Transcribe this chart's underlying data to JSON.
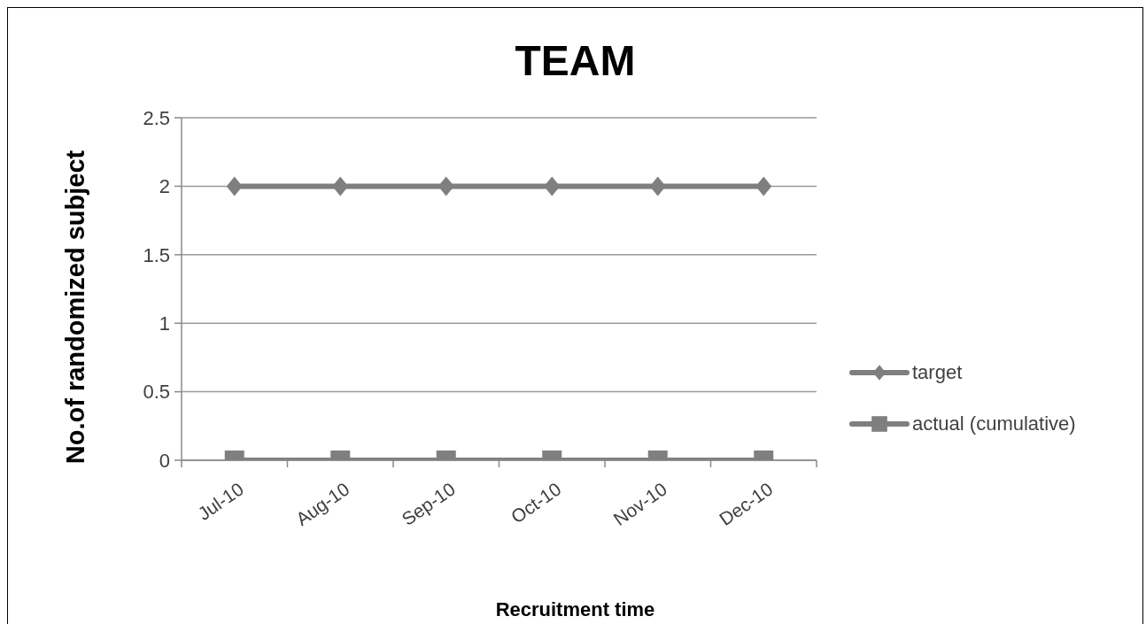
{
  "chart_data": {
    "type": "line",
    "title": "TEAM",
    "xlabel": "Recruitment time",
    "ylabel": "No.of randomized subject",
    "categories": [
      "Jul-10",
      "Aug-10",
      "Sep-10",
      "Oct-10",
      "Nov-10",
      "Dec-10"
    ],
    "series": [
      {
        "name": "target",
        "color": "#7f7f7f",
        "marker": "diamond",
        "values": [
          2,
          2,
          2,
          2,
          2,
          2
        ]
      },
      {
        "name": "actual (cumulative)",
        "color": "#7f7f7f",
        "marker": "square",
        "values": [
          0,
          0,
          0,
          0,
          0,
          0
        ]
      }
    ],
    "ylim": [
      0,
      2.5
    ],
    "yticks": [
      0,
      0.5,
      1,
      1.5,
      2,
      2.5
    ],
    "grid": "y",
    "legend": "right",
    "line_style": "solid"
  }
}
